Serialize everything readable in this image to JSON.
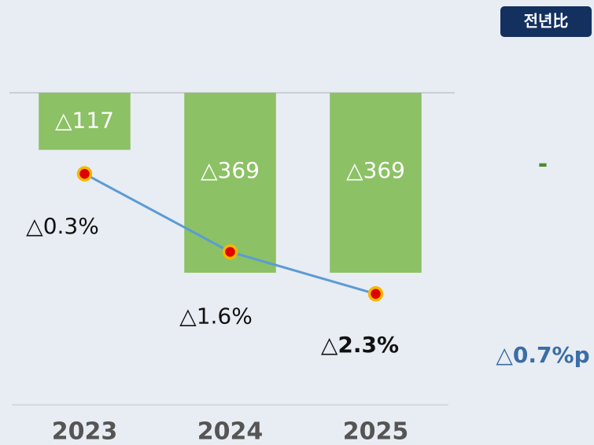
{
  "chart_data": {
    "type": "bar",
    "categories": [
      "2023",
      "2024",
      "2025"
    ],
    "series": [
      {
        "type": "bar",
        "color": "#8cc165",
        "values": [
          -117,
          -369,
          -369
        ],
        "value_labels": [
          "△117",
          "△369",
          "△369"
        ]
      },
      {
        "type": "line",
        "axis": "y2",
        "color": "#5b9bd5",
        "marker_color": "#e00000",
        "marker_edge": "#f5b800",
        "values": [
          -0.3,
          -1.6,
          -2.3
        ],
        "value_labels": [
          "△0.3%",
          "△1.6%",
          "△2.3%"
        ]
      }
    ],
    "ylim": [
      -640,
      0
    ],
    "y2lim": [
      -4.15,
      1.05
    ],
    "annotations": {
      "badge": "전년比",
      "bar_change": "-",
      "line_change": "△0.7%p"
    }
  }
}
